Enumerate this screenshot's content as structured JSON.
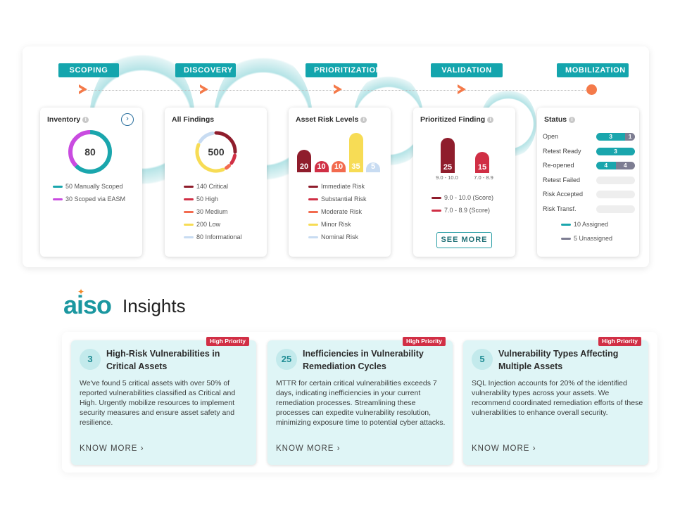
{
  "stages": [
    "SCOPING",
    "DISCOVERY",
    "PRIORITIZATION",
    "VALIDATION",
    "MOBILIZATION"
  ],
  "inventory": {
    "title": "Inventory",
    "total": "80",
    "legend": [
      {
        "label": "50 Manually Scoped",
        "color": "#1aa6ad"
      },
      {
        "label": "30 Scoped via EASM",
        "color": "#c94be0"
      }
    ]
  },
  "findings": {
    "title": "All Findings",
    "total": "500",
    "legend": [
      {
        "label": "140 Critical",
        "color": "#8f1d2c"
      },
      {
        "label": "50 High",
        "color": "#d02f45"
      },
      {
        "label": "30 Medium",
        "color": "#f26b4f"
      },
      {
        "label": "200 Low",
        "color": "#f7dc55"
      },
      {
        "label": "80 Informational",
        "color": "#c8dcf2"
      }
    ]
  },
  "asset_risk": {
    "title": "Asset Risk Levels",
    "bars": [
      {
        "value": "20",
        "level": 20,
        "color": "#8f1d2c"
      },
      {
        "value": "10",
        "level": 10,
        "color": "#d02f45"
      },
      {
        "value": "10",
        "level": 10,
        "color": "#f26b4f"
      },
      {
        "value": "35",
        "level": 35,
        "color": "#f7dc55"
      },
      {
        "value": "5",
        "level": 5,
        "color": "#c8dcf2"
      }
    ],
    "legend": [
      {
        "label": "Immediate Risk",
        "color": "#8f1d2c"
      },
      {
        "label": "Substantial Risk",
        "color": "#d02f45"
      },
      {
        "label": "Moderate Risk",
        "color": "#f26b4f"
      },
      {
        "label": "Minor Risk",
        "color": "#f7dc55"
      },
      {
        "label": "Nominal Risk",
        "color": "#c8dcf2"
      }
    ]
  },
  "prioritized": {
    "title": "Prioritized Finding",
    "bars": [
      {
        "value": "25",
        "level": 25,
        "caption": "9.0 - 10.0",
        "color": "#8f1d2c"
      },
      {
        "value": "15",
        "level": 15,
        "caption": "7.0 - 8.9",
        "color": "#d02f45"
      }
    ],
    "legend": [
      {
        "label": "9.0 - 10.0 (Score)",
        "color": "#8f1d2c"
      },
      {
        "label": "7.0 - 8.9 (Score)",
        "color": "#d02f45"
      }
    ],
    "see_more": "SEE MORE"
  },
  "status": {
    "title": "Status",
    "rows": [
      {
        "label": "Open",
        "assigned": "3",
        "unassigned": "1",
        "assigned_n": 3,
        "unassigned_n": 1
      },
      {
        "label": "Retest Ready",
        "assigned": "3",
        "unassigned": "",
        "assigned_n": 3,
        "unassigned_n": 0
      },
      {
        "label": "Re-opened",
        "assigned": "4",
        "unassigned": "4",
        "assigned_n": 4,
        "unassigned_n": 4
      },
      {
        "label": "Retest Failed",
        "assigned": "",
        "unassigned": "",
        "assigned_n": 0,
        "unassigned_n": 0
      },
      {
        "label": "Risk Accepted",
        "assigned": "",
        "unassigned": "",
        "assigned_n": 0,
        "unassigned_n": 0
      },
      {
        "label": "Risk Transf.",
        "assigned": "",
        "unassigned": "",
        "assigned_n": 0,
        "unassigned_n": 0
      }
    ],
    "legend": [
      {
        "label": "10 Assigned",
        "color": "#1aa6ad"
      },
      {
        "label": "5 Unassigned",
        "color": "#7d7d92"
      }
    ]
  },
  "brand": {
    "logo": "aiso",
    "title": "Insights"
  },
  "insights": [
    {
      "badge": "High Priority",
      "number": "3",
      "title": "High-Risk Vulnerabilities in Critical Assets",
      "body": "We've found 5 critical assets with over 50% of reported vulnerabilities classified as Critical and High. Urgently mobilize resources to implement security measures and ensure asset safety and resilience.",
      "cta": "KNOW MORE"
    },
    {
      "badge": "High Priority",
      "number": "25",
      "title": "Inefficiencies in Vulnerability Remediation Cycles",
      "body": "MTTR for certain critical vulnerabilities exceeds 7 days, indicating inefficiencies in your current remediation processes. Streamlining these processes can expedite vulnerability resolution, minimizing exposure time to potential cyber attacks.",
      "cta": "KNOW MORE"
    },
    {
      "badge": "High Priority",
      "number": "5",
      "title": "Vulnerability Types Affecting Multiple Assets",
      "body": "SQL Injection accounts for 20% of the identified vulnerability types across your assets. We recommend coordinated remediation efforts of these vulnerabilities to enhance overall security.",
      "cta": "KNOW MORE"
    }
  ]
}
